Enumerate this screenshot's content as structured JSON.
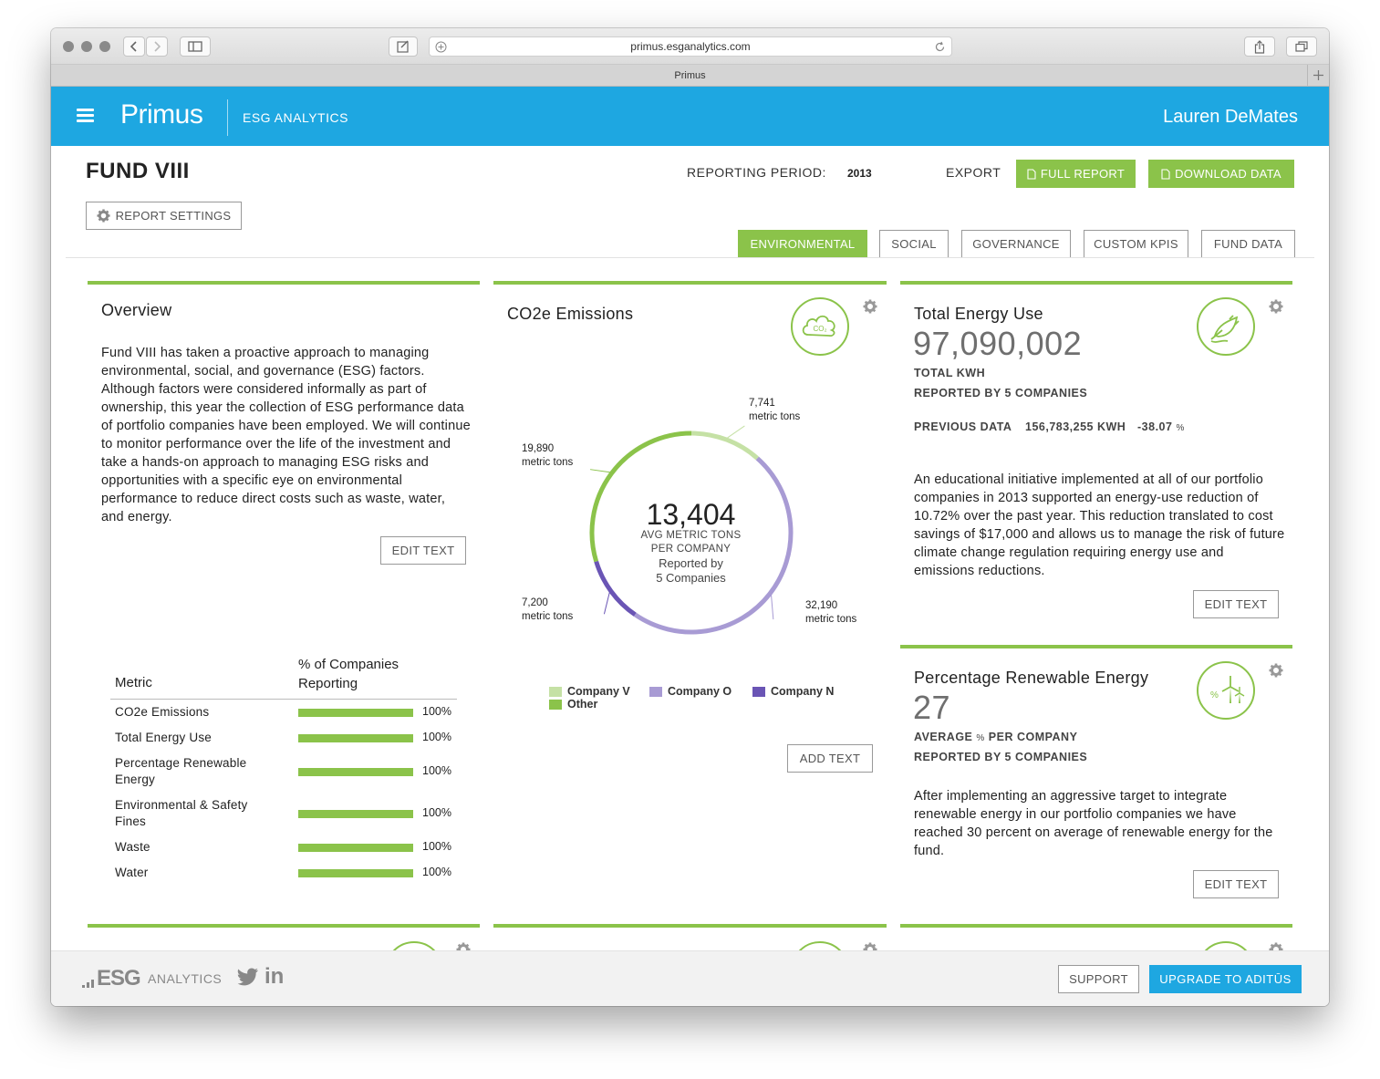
{
  "browser": {
    "url": "primus.esganalytics.com",
    "tab_title": "Primus"
  },
  "header": {
    "brand": "Primus",
    "subtitle": "ESG ANALYTICS",
    "user": "Lauren DeMates"
  },
  "page": {
    "fund": "FUND VIII",
    "reporting_period_label": "REPORTING PERIOD:",
    "reporting_period_value": "2013",
    "export_label": "EXPORT",
    "full_report": "FULL REPORT",
    "download_data": "DOWNLOAD DATA",
    "report_settings": "REPORT SETTINGS",
    "tabs": [
      "ENVIRONMENTAL",
      "SOCIAL",
      "GOVERNANCE",
      "CUSTOM KPIS",
      "FUND DATA"
    ]
  },
  "overview": {
    "title": "Overview",
    "text": "Fund VIII has taken a proactive approach to managing environmental, social, and governance (ESG) factors. Although factors were considered informally as part of ownership, this year the collection of ESG performance data of portfolio companies have been employed. We will continue to monitor performance over the life of the investment and take a hands-on approach to managing ESG risks and opportunities with a specific eye on environmental performance to reduce direct costs such as waste, water, and energy.",
    "edit": "EDIT TEXT",
    "table": {
      "col1": "Metric",
      "col2": "% of Companies Reporting",
      "rows": [
        {
          "label": "CO2e Emissions",
          "pct": "100%",
          "value": 1.0
        },
        {
          "label": "Total Energy Use",
          "pct": "100%",
          "value": 1.0
        },
        {
          "label": "Percentage Renewable Energy",
          "pct": "100%",
          "value": 1.0
        },
        {
          "label": "Environmental & Safety Fines",
          "pct": "100%",
          "value": 1.0
        },
        {
          "label": "Waste",
          "pct": "100%",
          "value": 1.0
        },
        {
          "label": "Water",
          "pct": "100%",
          "value": 1.0
        }
      ]
    }
  },
  "co2": {
    "title": "CO2e Emissions",
    "icon": "co2-cloud-icon",
    "center_value": "13,404",
    "center_line1": "AVG METRIC TONS",
    "center_line2": "PER COMPANY",
    "center_line3": "Reported by",
    "center_line4": "5 Companies",
    "segments": [
      {
        "name": "Company V",
        "value": 7741,
        "label_value": "7,741",
        "unit": "metric tons",
        "color": "#c5e1a5"
      },
      {
        "name": "Company O",
        "value": 32190,
        "label_value": "32,190",
        "unit": "metric tons",
        "color": "#a89bd4"
      },
      {
        "name": "Company N",
        "value": 7200,
        "label_value": "7,200",
        "unit": "metric tons",
        "color": "#6a55b5"
      },
      {
        "name": "Other",
        "value": 19890,
        "label_value": "19,890",
        "unit": "metric tons",
        "color": "#8bc34a"
      }
    ],
    "add_text": "ADD TEXT"
  },
  "energy": {
    "title": "Total Energy Use",
    "icon": "plug-leaf-icon",
    "value": "97,090,002",
    "unit": "TOTAL KWH",
    "reported": "REPORTED BY 5 COMPANIES",
    "prev_label": "PREVIOUS DATA",
    "prev_value": "156,783,255 KWH",
    "prev_change": "-38.07",
    "prev_change_unit": "%",
    "text": "An educational initiative implemented at all of our portfolio companies in 2013 supported an energy-use reduction of 10.72% over the past year. This reduction translated to cost savings of $17,000 and allows us to manage the risk of future climate change regulation requiring energy use and emissions reductions.",
    "edit": "EDIT TEXT"
  },
  "renewable": {
    "title": "Percentage Renewable Energy",
    "icon": "wind-turbine-icon",
    "value": "27",
    "unit_prefix": "AVERAGE",
    "unit_pct": "%",
    "unit_suffix": "PER COMPANY",
    "reported": "REPORTED BY 5 COMPANIES",
    "text": "After implementing an aggressive target to integrate renewable energy in our portfolio companies we have reached 30 percent on average of renewable energy for the fund.",
    "edit": "EDIT TEXT"
  },
  "footer": {
    "logo": "ESG",
    "logo_sub": "ANALYTICS",
    "twitter": "twitter-icon",
    "linkedin_text": "in",
    "support": "SUPPORT",
    "upgrade": "UPGRADE TO ADITŪS"
  },
  "colors": {
    "blue": "#1ea7e1",
    "green": "#8bc34a"
  }
}
